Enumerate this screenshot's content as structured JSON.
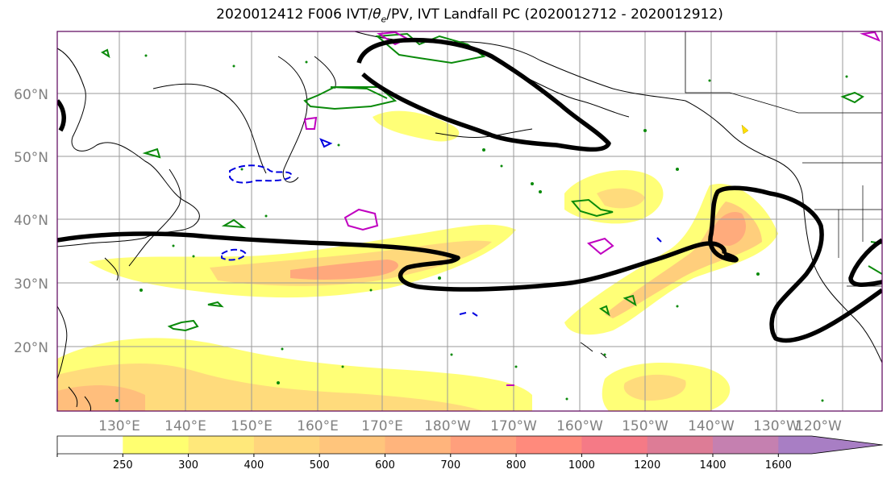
{
  "title": {
    "prefix": "2020012412 F006 IVT/",
    "theta": "θ",
    "theta_sub": "e",
    "suffix": "/PV, IVT Landfall PC (2020012712 - 2020012912)"
  },
  "map": {
    "lat_labels": [
      "60°N",
      "50°N",
      "40°N",
      "30°N",
      "20°N"
    ],
    "lon_labels": [
      "130°E",
      "140°E",
      "150°E",
      "160°E",
      "170°E",
      "180°W",
      "170°W",
      "160°W",
      "150°W",
      "140°W",
      "130°W",
      "120°W"
    ],
    "colors": {
      "landfall_contour": "#000000",
      "theta_e_contour": "#0a8a0a",
      "pv_positive": "#c000c0",
      "pv_negative": "#0000e0",
      "graticule": "#9a9a9a",
      "coastline": "#000000"
    }
  },
  "colorbar": {
    "levels": [
      "250",
      "300",
      "400",
      "500",
      "600",
      "700",
      "800",
      "1000",
      "1200",
      "1400",
      "1600"
    ],
    "colors": [
      "#ffffff",
      "#ffff70",
      "#ffe87a",
      "#ffd57c",
      "#ffc57c",
      "#ffb47c",
      "#ff9f7c",
      "#ff8a7c",
      "#f57a86",
      "#dd7c96",
      "#c580b0",
      "#a87ec4"
    ],
    "extend": "max"
  }
}
